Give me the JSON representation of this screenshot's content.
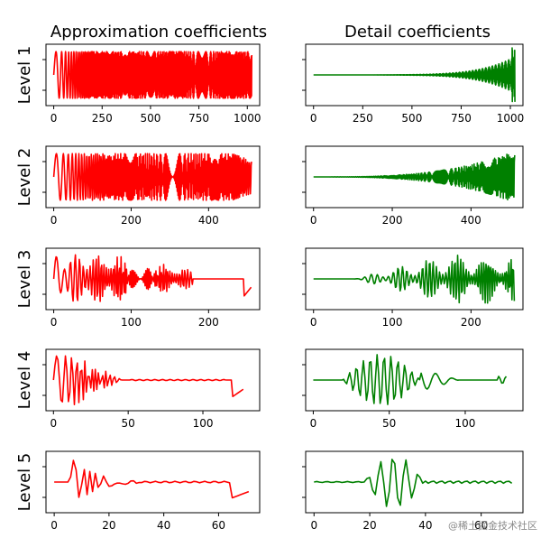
{
  "chart_data": {
    "type": "line",
    "column_titles": [
      "Approximation coefficients",
      "Detail coefficients"
    ],
    "row_labels": [
      "Level 1",
      "Level 2",
      "Level 3",
      "Level 4",
      "Level 5"
    ],
    "colors": {
      "approximation": "#ff0000",
      "detail": "#008000"
    },
    "levels": [
      {
        "label": "Level 1",
        "length": 1024,
        "xlim": [
          -40,
          1064
        ],
        "xticks": [
          0,
          250,
          500,
          750,
          1000
        ]
      },
      {
        "label": "Level 2",
        "length": 512,
        "xlim": [
          -20,
          532
        ],
        "xticks": [
          0,
          200,
          400
        ]
      },
      {
        "label": "Level 3",
        "length": 256,
        "xlim": [
          -10,
          266
        ],
        "xticks": [
          0,
          100,
          200
        ]
      },
      {
        "label": "Level 4",
        "length": 128,
        "xlim": [
          -5,
          138
        ],
        "xticks": [
          0,
          50,
          100
        ]
      },
      {
        "label": "Level 5",
        "length": 72,
        "xlim": [
          -3,
          75
        ],
        "xticks": [
          0,
          20,
          40,
          60
        ]
      }
    ],
    "y_ticks_shown_as_unlabeled_marks": 2,
    "notes": "Signal is a chirp; approximation coefficients oscillate with increasing frequency, detail coefficients grow in amplitude with index."
  },
  "watermark": "@稀土掘金技术社区"
}
